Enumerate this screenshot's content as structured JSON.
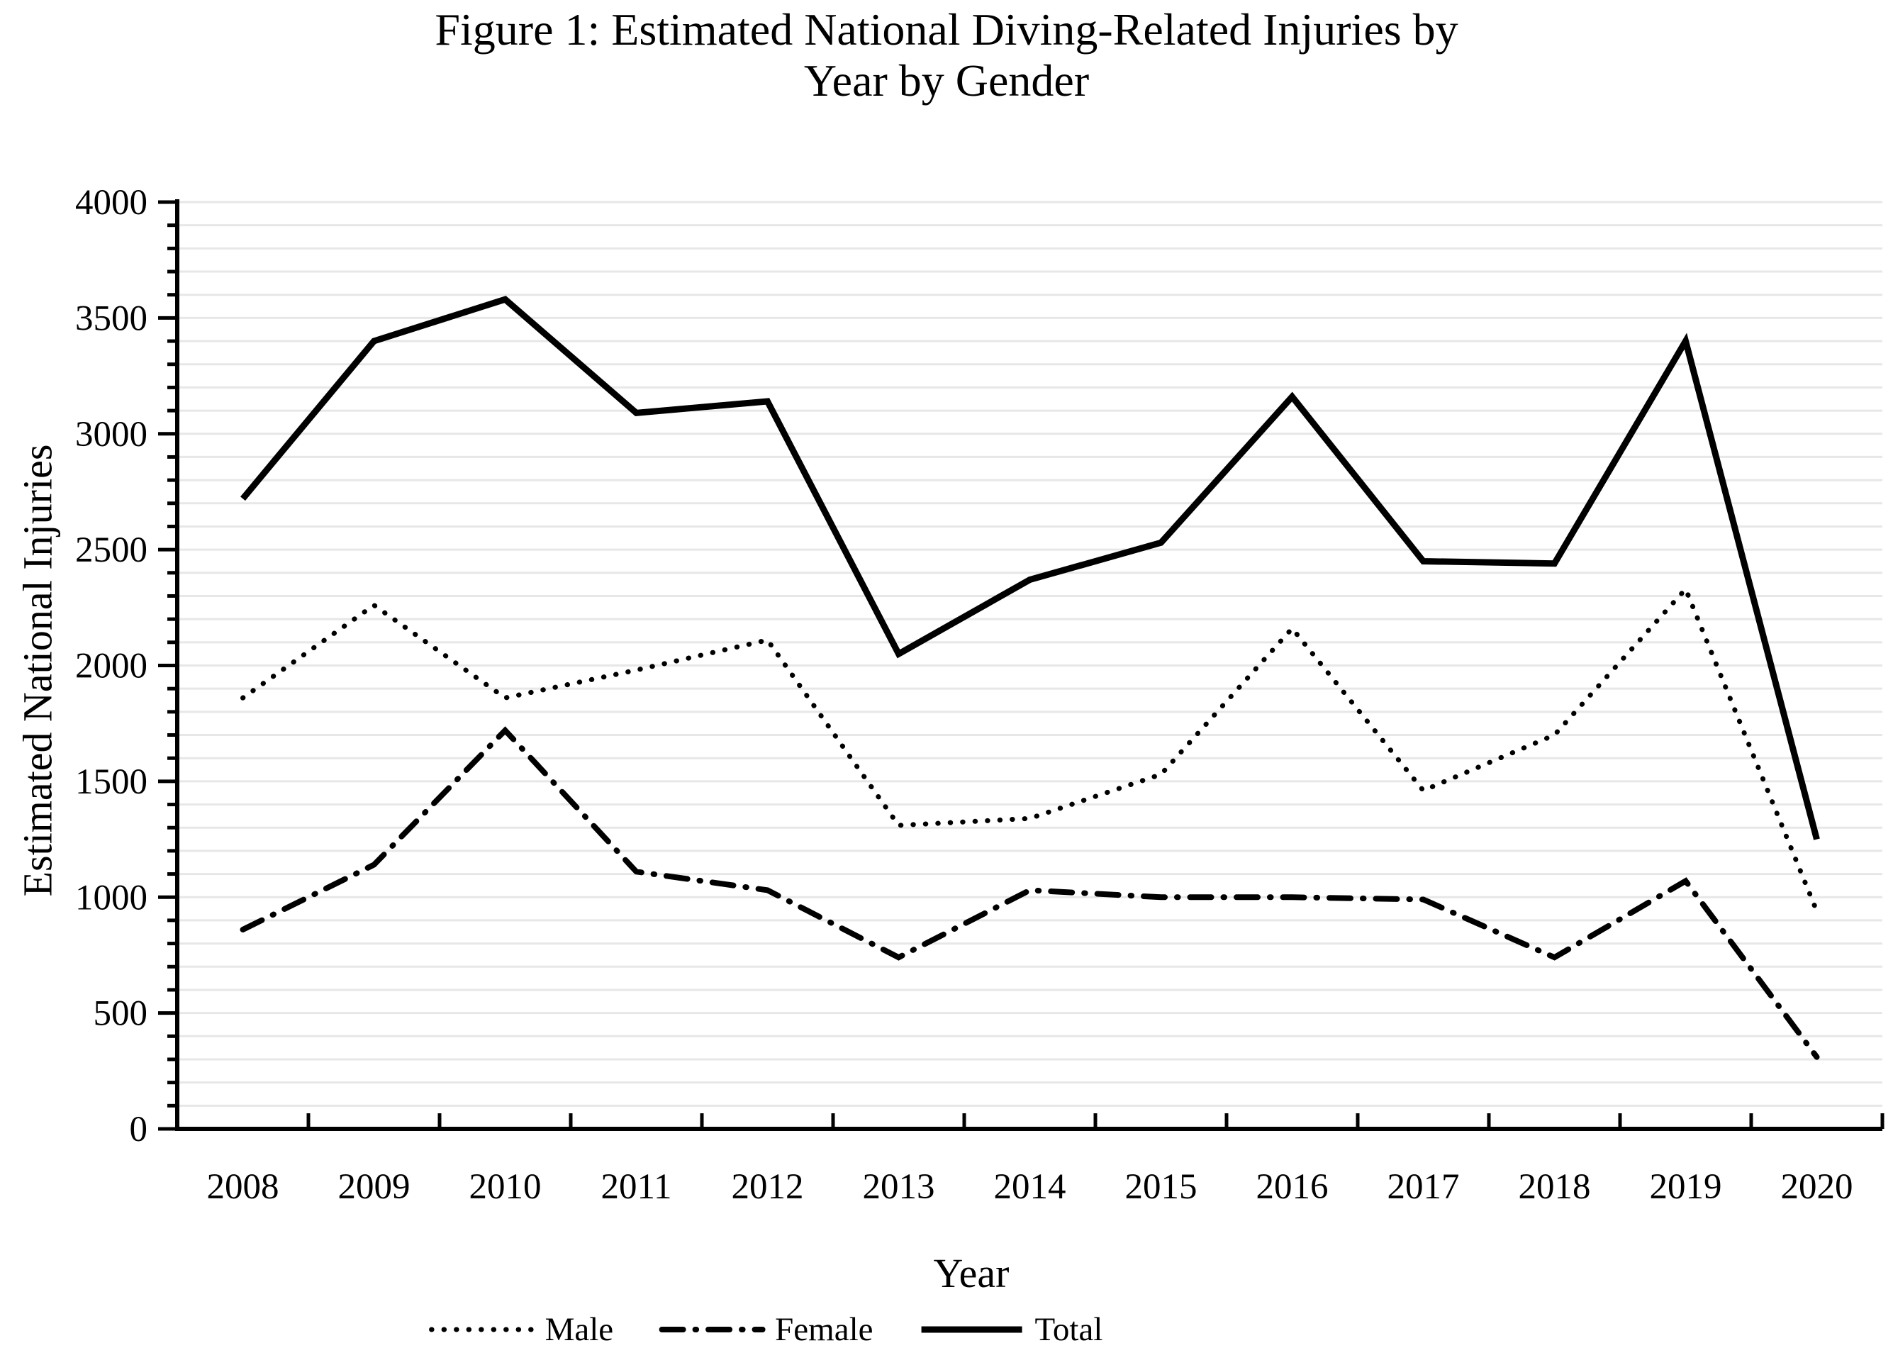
{
  "chart_data": {
    "type": "line",
    "title_line1": "Figure 1: Estimated National Diving-Related Injuries by",
    "title_line2": "Year by Gender",
    "xlabel": "Year",
    "ylabel": "Estimated National Injuries",
    "ylim": [
      0,
      4000
    ],
    "ytick_interval": 500,
    "minor_grid_interval": 100,
    "yticks": [
      0,
      500,
      1000,
      1500,
      2000,
      2500,
      3000,
      3500,
      4000
    ],
    "grid": "horizontal minor gridlines on",
    "legend_position": "bottom",
    "categories": [
      "2008",
      "2009",
      "2010",
      "2011",
      "2012",
      "2013",
      "2014",
      "2015",
      "2016",
      "2017",
      "2018",
      "2019",
      "2020"
    ],
    "series": [
      {
        "name": "Male",
        "style": "dotted",
        "color": "#000000",
        "values": [
          1860,
          2260,
          1860,
          1980,
          2110,
          1310,
          1340,
          1530,
          2160,
          1460,
          1700,
          2330,
          940
        ]
      },
      {
        "name": "Female",
        "style": "dash-dot",
        "color": "#000000",
        "values": [
          860,
          1140,
          1720,
          1110,
          1030,
          740,
          1030,
          1000,
          1000,
          990,
          740,
          1070,
          310
        ]
      },
      {
        "name": "Total",
        "style": "solid",
        "color": "#000000",
        "values": [
          2720,
          3400,
          3580,
          3090,
          3140,
          2050,
          2370,
          2530,
          3160,
          2450,
          2440,
          3400,
          1250
        ]
      }
    ],
    "colors": {
      "axis": "#000000",
      "gridline": "#e7e7e7",
      "background": "#ffffff"
    }
  }
}
